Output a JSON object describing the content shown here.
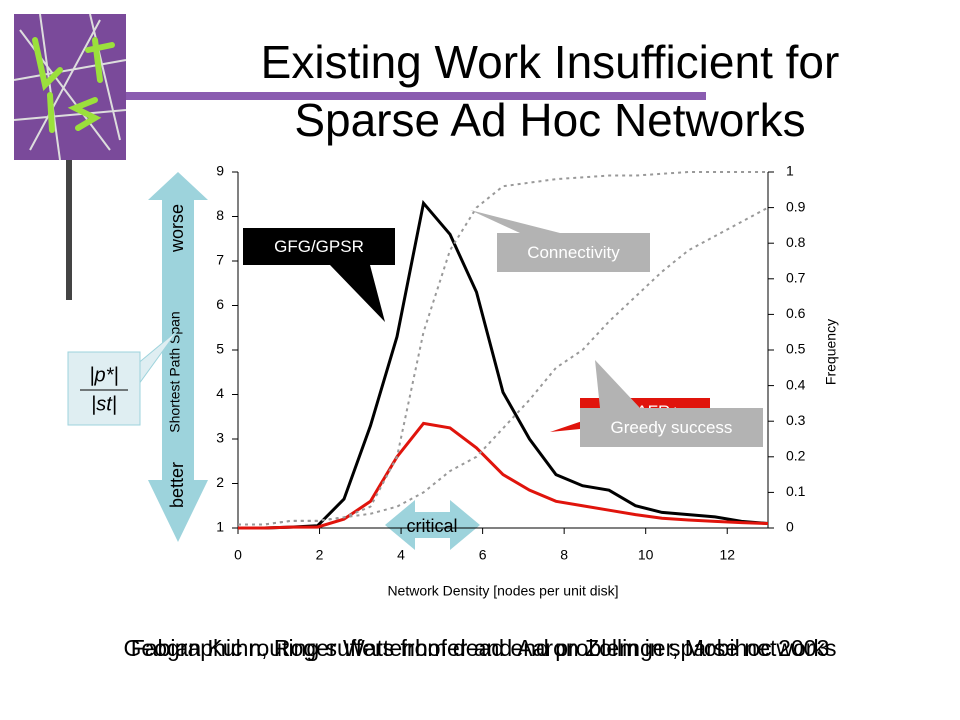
{
  "chart_data": {
    "type": "line",
    "title": [
      "Existing Work Insufficient for",
      "Sparse Ad Hoc Networks"
    ],
    "xlabel": "Network Density [nodes per unit disk]",
    "ylabel": "Shortest Path Span",
    "y2label": "Frequency",
    "x": [
      0,
      0.65,
      1.3,
      1.95,
      2.6,
      3.25,
      3.9,
      4.55,
      5.2,
      5.85,
      6.5,
      7.15,
      7.8,
      8.45,
      9.1,
      9.75,
      10.4,
      11.05,
      11.7,
      12.35,
      13
    ],
    "xlim": [
      0,
      13
    ],
    "xticks": [
      0,
      2,
      4,
      6,
      8,
      10,
      12
    ],
    "ylim": [
      1,
      9
    ],
    "yticks": [
      1,
      2,
      3,
      4,
      5,
      6,
      7,
      8,
      9
    ],
    "y2lim": [
      0,
      1
    ],
    "y2ticks": [
      0,
      0.1,
      0.2,
      0.3,
      0.4,
      0.5,
      0.6,
      0.7,
      0.8,
      0.9,
      1
    ],
    "series": [
      {
        "name": "GFG/GPSR",
        "color": "#000000",
        "values": [
          1,
          1,
          1.02,
          1.05,
          1.65,
          3.3,
          5.3,
          8.3,
          7.6,
          6.3,
          4.05,
          3.0,
          2.2,
          1.95,
          1.85,
          1.5,
          1.35,
          1.3,
          1.25,
          1.15,
          1.1
        ]
      },
      {
        "name": "GOAFR+",
        "color": "#e0140c",
        "values": [
          1,
          1,
          1.02,
          1.02,
          1.2,
          1.6,
          2.6,
          3.35,
          3.25,
          2.8,
          2.2,
          1.85,
          1.6,
          1.5,
          1.4,
          1.3,
          1.22,
          1.18,
          1.15,
          1.12,
          1.1
        ]
      },
      {
        "name": "Connectivity",
        "color": "#999999",
        "axis": "y2",
        "dashed": true,
        "values": [
          0.01,
          0.01,
          0.02,
          0.02,
          0.03,
          0.06,
          0.2,
          0.55,
          0.78,
          0.9,
          0.96,
          0.97,
          0.98,
          0.985,
          0.99,
          0.99,
          0.995,
          1,
          1,
          1,
          1
        ]
      },
      {
        "name": "Greedy success",
        "color": "#999999",
        "axis": "y2",
        "dashed": true,
        "values": [
          0.01,
          0.01,
          0.02,
          0.02,
          0.03,
          0.04,
          0.06,
          0.1,
          0.16,
          0.2,
          0.28,
          0.36,
          0.45,
          0.5,
          0.58,
          0.65,
          0.72,
          0.78,
          0.82,
          0.86,
          0.9
        ]
      }
    ],
    "annotations": {
      "worse": "worse",
      "better": "better",
      "critical": "critical"
    }
  },
  "formula": {
    "numerator": "|p*|",
    "denominator": "|st|"
  },
  "footer": [
    "Fabian Kuhn, Roger Wattenhofer and Aaron Zollinger, Mobihoc 2003",
    "Geographic routing suffers from dead end problem in sparse networks"
  ]
}
